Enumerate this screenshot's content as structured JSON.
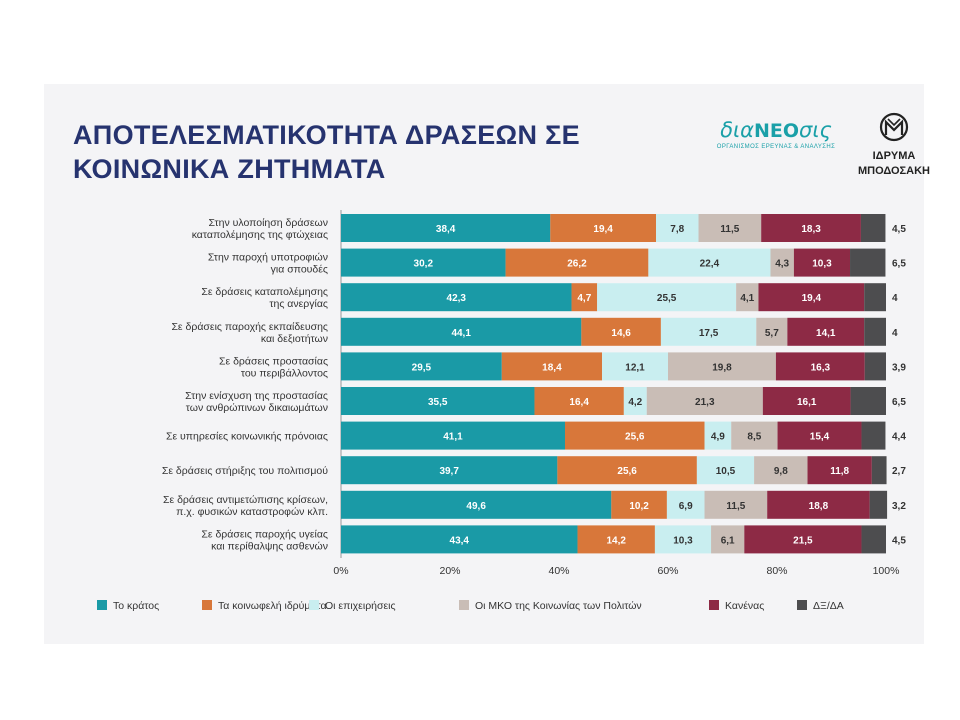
{
  "title_lines": [
    "ΑΠΟΤΕΛΕΣΜΑΤΙΚΟΤΗΤΑ ΔΡΑΣΕΩΝ ΣΕ",
    "ΚΟΙΝΩΝΙΚΑ ΖΗΤΗΜΑΤΑ"
  ],
  "logos": {
    "dianeosis": {
      "word_prefix": "δια",
      "word_core": "NEO",
      "word_suffix": "σις",
      "subtitle": "ΟΡΓΑΝΙΣΜΟΣ ΕΡΕΥΝΑΣ & ΑΝΑΛΥΣΗΣ",
      "color": "#1aa0a8"
    },
    "foundation": {
      "line1": "ΙΔΡΥΜΑ",
      "line2": "ΜΠΟΔΟΣΑΚΗ",
      "color": "#222222"
    }
  },
  "chart_data": {
    "type": "bar",
    "orientation": "horizontal",
    "stacked": true,
    "percent": true,
    "categories": [
      [
        "Στην υλοποίηση δράσεων",
        "καταπολέμησης της φτώχειας"
      ],
      [
        "Στην παροχή υποτροφιών",
        "για σπουδές"
      ],
      [
        "Σε δράσεις καταπολέμησης",
        "της ανεργίας"
      ],
      [
        "Σε δράσεις παροχής εκπαίδευσης",
        "και δεξιοτήτων"
      ],
      [
        "Σε δράσεις προστασίας",
        "του περιβάλλοντος"
      ],
      [
        "Στην ενίσχυση της προστασίας",
        "των ανθρώπινων δικαιωμάτων"
      ],
      [
        "Σε υπηρεσίες κοινωνικής πρόνοιας"
      ],
      [
        "Σε δράσεις στήριξης του πολιτισμού"
      ],
      [
        "Σε δράσεις αντιμετώπισης κρίσεων,",
        "π.χ. φυσικών καταστροφών κλπ."
      ],
      [
        "Σε δράσεις παροχής υγείας",
        "και περίθαλψης ασθενών"
      ]
    ],
    "series": [
      {
        "name": "Το κράτος",
        "color": "#1a9aa6",
        "label_color": "#ffffff",
        "values": [
          38.4,
          30.2,
          42.3,
          44.1,
          29.5,
          35.5,
          41.1,
          39.7,
          49.6,
          43.4
        ]
      },
      {
        "name": "Τα κοινωφελή ιδρύματα",
        "color": "#d8773a",
        "label_color": "#ffffff",
        "values": [
          19.4,
          26.2,
          4.7,
          14.6,
          18.4,
          16.4,
          25.6,
          25.6,
          10.2,
          14.2
        ]
      },
      {
        "name": "Οι επιχειρήσεις",
        "color": "#c9eef0",
        "label_color": "#333333",
        "values": [
          7.8,
          22.4,
          25.5,
          17.5,
          12.1,
          4.2,
          4.9,
          10.5,
          6.9,
          10.3
        ]
      },
      {
        "name": "Οι ΜΚΟ της Κοινωνίας των Πολιτών",
        "color": "#c9bdb6",
        "label_color": "#333333",
        "values": [
          11.5,
          4.3,
          4.1,
          5.7,
          19.8,
          21.3,
          8.5,
          9.8,
          11.5,
          6.1
        ]
      },
      {
        "name": "Κανένας",
        "color": "#8d2a45",
        "label_color": "#ffffff",
        "values": [
          18.3,
          10.3,
          19.4,
          14.1,
          16.3,
          16.1,
          15.4,
          11.8,
          18.8,
          21.5
        ]
      },
      {
        "name": "ΔΞ/ΔΑ",
        "color": "#4d4d4f",
        "label_color": "#333333",
        "values": [
          4.5,
          6.5,
          4,
          4,
          3.9,
          6.5,
          4.4,
          2.7,
          3.2,
          4.5
        ]
      }
    ],
    "value_labels": [
      [
        "38,4",
        "19,4",
        "7,8",
        "11,5",
        "18,3",
        "4,5"
      ],
      [
        "30,2",
        "26,2",
        "22,4",
        "4,3",
        "10,3",
        "6,5"
      ],
      [
        "42,3",
        "4,7",
        "25,5",
        "4,1",
        "19,4",
        "4"
      ],
      [
        "44,1",
        "14,6",
        "17,5",
        "5,7",
        "14,1",
        "4"
      ],
      [
        "29,5",
        "18,4",
        "12,1",
        "19,8",
        "16,3",
        "3,9"
      ],
      [
        "35,5",
        "16,4",
        "4,2",
        "21,3",
        "16,1",
        "6,5"
      ],
      [
        "41,1",
        "25,6",
        "4,9",
        "8,5",
        "15,4",
        "4,4"
      ],
      [
        "39,7",
        "25,6",
        "10,5",
        "9,8",
        "11,8",
        "2,7"
      ],
      [
        "49,6",
        "10,2",
        "6,9",
        "11,5",
        "18,8",
        "3,2"
      ],
      [
        "43,4",
        "14,2",
        "10,3",
        "6,1",
        "21,5",
        "4,5"
      ]
    ],
    "xticks": [
      "0%",
      "20%",
      "40%",
      "60%",
      "80%",
      "100%"
    ],
    "xlim": [
      0,
      100
    ],
    "legend_position": "bottom",
    "grid": false
  }
}
